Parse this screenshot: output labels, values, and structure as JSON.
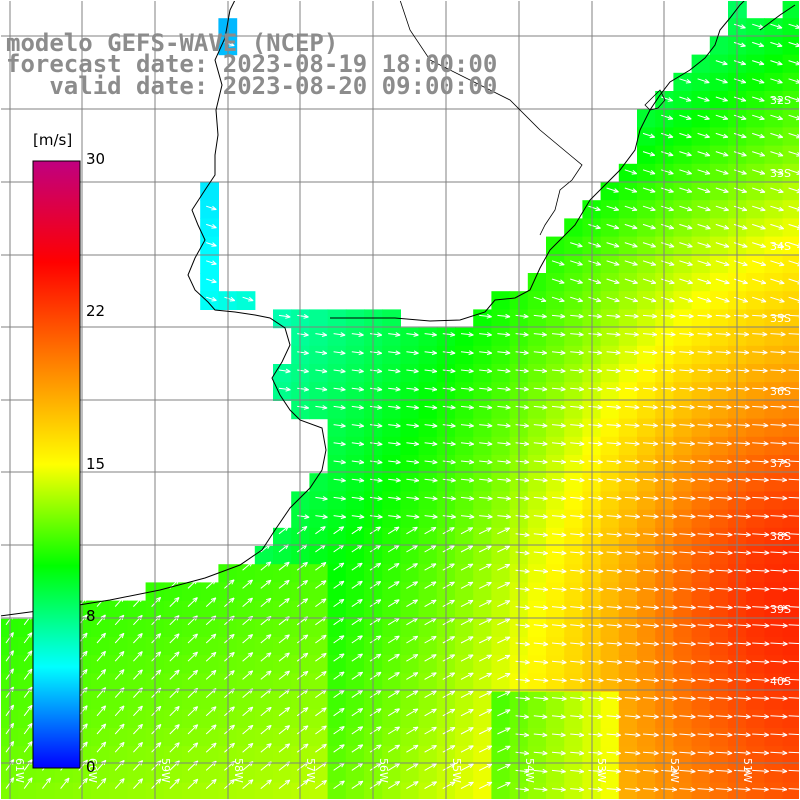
{
  "header": {
    "line1": "modelo GEFS-WAVE (NCEP)",
    "line2": "forecast date: 2023-08-19 18:00:00",
    "line3": "   valid date: 2023-08-20 09:00:00"
  },
  "colorbar": {
    "unit": "[m/s]",
    "ticks": [
      "30",
      "22",
      "15",
      "8",
      "0"
    ],
    "stops": [
      "#0000ff",
      "#00ffff",
      "#00ff00",
      "#ffff00",
      "#ff8000",
      "#ff0000",
      "#c00080"
    ]
  },
  "grid": {
    "lat_labels": [
      "32S",
      "33S",
      "34S",
      "35S",
      "36S",
      "37S",
      "38S",
      "39S",
      "40S"
    ],
    "lon_labels": [
      "61W",
      "60W",
      "59W",
      "58W",
      "57W",
      "56W",
      "55W",
      "54W",
      "53W",
      "52W",
      "51W"
    ]
  },
  "colors": {
    "land": "#ffffff",
    "coast": "#000000",
    "grid": "#808080",
    "arrows": "#ffffff",
    "title": "#8c8c8c"
  }
}
